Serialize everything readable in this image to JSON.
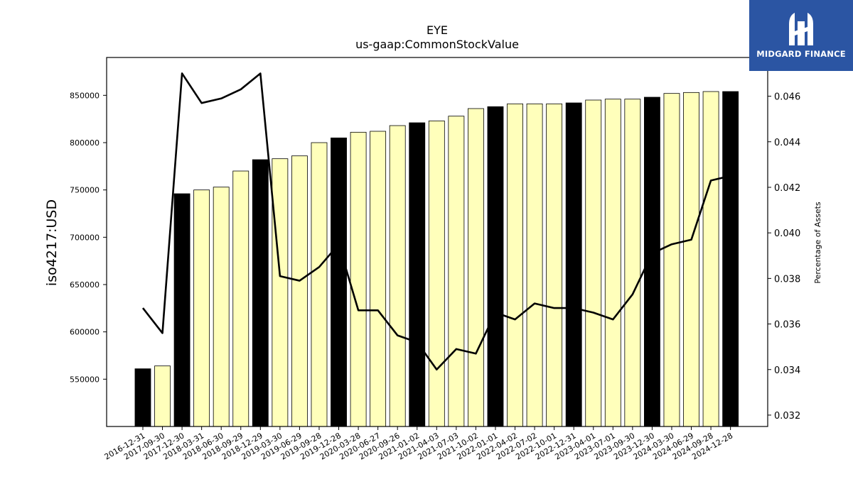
{
  "chart_data": {
    "type": "bar",
    "title": "EYE",
    "subtitle": "us-gaap:CommonStockValue",
    "ylabel": "iso4217:USD",
    "y2label": "Percentage of Assets",
    "categories": [
      "2016-12-31",
      "2017-09-30",
      "2017-12-30",
      "2018-03-31",
      "2018-06-30",
      "2018-09-29",
      "2018-12-29",
      "2019-03-30",
      "2019-06-29",
      "2019-09-28",
      "2019-12-28",
      "2020-03-28",
      "2020-06-27",
      "2020-09-26",
      "2021-01-02",
      "2021-04-03",
      "2021-07-03",
      "2021-10-02",
      "2022-01-01",
      "2022-04-02",
      "2022-07-02",
      "2022-10-01",
      "2022-12-31",
      "2023-04-01",
      "2023-07-01",
      "2023-09-30",
      "2023-12-30",
      "2024-03-30",
      "2024-06-29",
      "2024-09-28",
      "2024-12-28"
    ],
    "series": [
      {
        "type": "bar",
        "values": [
          561000,
          564000,
          746000,
          750000,
          753000,
          770000,
          782000,
          783000,
          786000,
          800000,
          805000,
          811000,
          812000,
          818000,
          821000,
          823000,
          828000,
          836000,
          838000,
          841000,
          841000,
          841000,
          842000,
          845000,
          846000,
          846000,
          848000,
          852000,
          853000,
          854000,
          854000
        ],
        "annual_flags": [
          true,
          false,
          true,
          false,
          false,
          false,
          true,
          false,
          false,
          false,
          true,
          false,
          false,
          false,
          true,
          false,
          false,
          false,
          true,
          false,
          false,
          false,
          true,
          false,
          false,
          false,
          true,
          false,
          false,
          false,
          true
        ]
      },
      {
        "type": "line",
        "axis": "right",
        "values": [
          0.0367,
          0.0356,
          0.047,
          0.0457,
          0.0459,
          0.0463,
          0.047,
          0.0381,
          0.0379,
          0.0385,
          0.0395,
          0.0366,
          0.0366,
          0.0355,
          0.0352,
          0.034,
          0.0349,
          0.0347,
          0.0365,
          0.0362,
          0.0369,
          0.0367,
          0.0367,
          0.0365,
          0.0362,
          0.0373,
          0.0391,
          0.0395,
          0.0397,
          0.0423,
          0.0425
        ]
      }
    ],
    "ylim": [
      500000,
      890000
    ],
    "y2lim": [
      0.0315,
      0.0477
    ],
    "yticks": [
      550000,
      600000,
      650000,
      700000,
      750000,
      800000,
      850000
    ],
    "y2ticks": [
      0.032,
      0.034,
      0.036,
      0.038,
      0.04,
      0.042,
      0.044,
      0.046
    ],
    "colors": {
      "annual_bar": "#000000",
      "quarter_bar": "#ffffbb",
      "line": "#000000",
      "logo_bg": "#2b55a3"
    }
  },
  "logo": {
    "text": "MIDGARD FINANCE"
  }
}
